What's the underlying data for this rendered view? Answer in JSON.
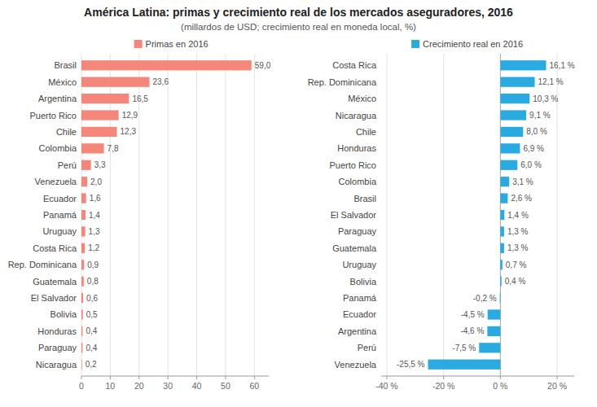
{
  "chart_data": [
    {
      "type": "bar",
      "orientation": "horizontal",
      "title": "América Latina: primas y crecimiento real de los mercados aseguradores, 2016",
      "subtitle": "(millardos de USD; crecimiento real en moneda local, %)",
      "categories": [
        "Brasil",
        "México",
        "Argentina",
        "Puerto Rico",
        "Chile",
        "Colombia",
        "Perú",
        "Venezuela",
        "Ecuador",
        "Panamá",
        "Uruguay",
        "Costa Rica",
        "Rep. Dominicana",
        "Guatemala",
        "El Salvador",
        "Bolivia",
        "Honduras",
        "Paraguay",
        "Nicaragua"
      ],
      "series": [
        {
          "name": "Primas en 2016",
          "color": "#f4877a",
          "values": [
            59.0,
            23.6,
            16.5,
            12.9,
            12.3,
            7.8,
            3.3,
            2.0,
            1.6,
            1.4,
            1.3,
            1.2,
            0.9,
            0.8,
            0.6,
            0.5,
            0.4,
            0.4,
            0.2
          ],
          "value_labels": [
            "59,0",
            "23,6",
            "16,5",
            "12,9",
            "12,3",
            "7,8",
            "3,3",
            "2,0",
            "1,6",
            "1,4",
            "1,3",
            "1,2",
            "0,9",
            "0,8",
            "0,6",
            "0,5",
            "0,4",
            "0,4",
            "0,2"
          ]
        }
      ],
      "xlim": [
        0,
        65
      ],
      "xticks": [
        0,
        10,
        20,
        30,
        40,
        50,
        60
      ],
      "grid": true,
      "legend": "top",
      "data_labels": true
    },
    {
      "type": "bar",
      "orientation": "horizontal",
      "categories": [
        "Costa Rica",
        "Rep. Dominicana",
        "México",
        "Nicaragua",
        "Chile",
        "Honduras",
        "Puerto Rico",
        "Colombia",
        "Brasil",
        "El Salvador",
        "Paraguay",
        "Guatemala",
        "Uruguay",
        "Bolivia",
        "Panamá",
        "Ecuador",
        "Argentina",
        "Perú",
        "Venezuela"
      ],
      "series": [
        {
          "name": "Crecimiento real en 2016",
          "color": "#29abe2",
          "values": [
            16.1,
            12.1,
            10.3,
            9.1,
            8.0,
            6.9,
            6.0,
            3.1,
            2.6,
            1.4,
            1.3,
            1.3,
            0.7,
            0.4,
            -0.2,
            -4.5,
            -4.6,
            -7.5,
            -25.5
          ],
          "value_labels": [
            "16,1 %",
            "12,1 %",
            "10,3 %",
            "9,1 %",
            "8,0 %",
            "6,9 %",
            "6,0 %",
            "3,1 %",
            "2,6 %",
            "1,4 %",
            "1,3 %",
            "1,3 %",
            "0,7 %",
            "0,4 %",
            "-0,2 %",
            "-4,5 %",
            "-4,6 %",
            "-7,5 %",
            "-25,5 %"
          ]
        }
      ],
      "xlim": [
        -42,
        26
      ],
      "xticks": [
        {
          "value": -40,
          "label": "-40 %"
        },
        {
          "value": -20,
          "label": "-20 %"
        },
        {
          "value": 0,
          "label": "0 %"
        },
        {
          "value": 20,
          "label": "20 %"
        }
      ],
      "grid": true,
      "legend": "top",
      "data_labels": true
    }
  ]
}
